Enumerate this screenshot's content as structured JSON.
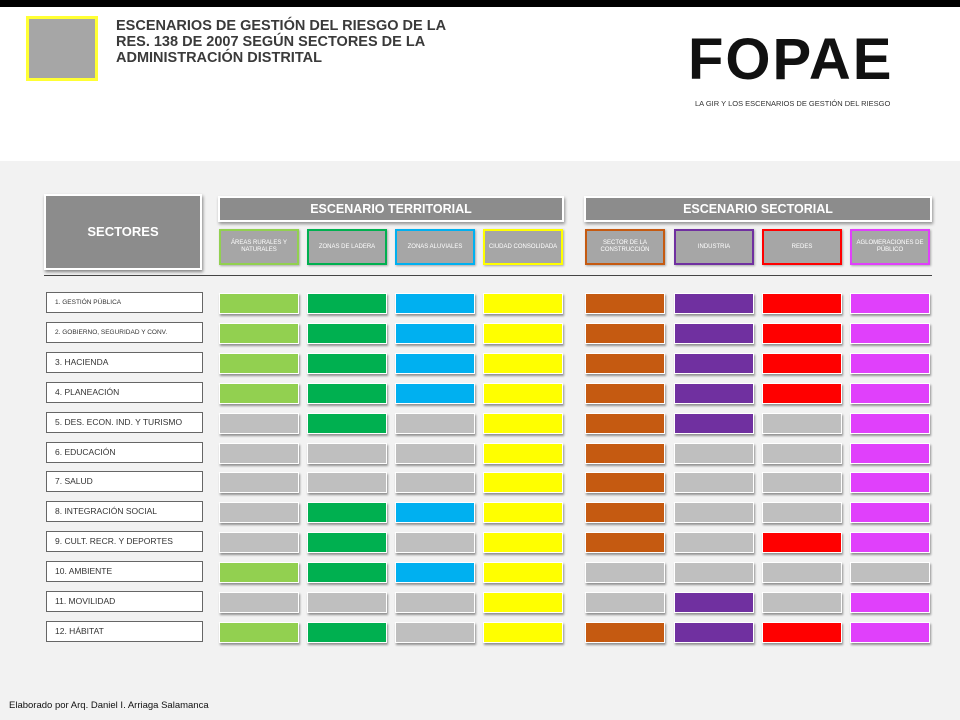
{
  "header": {
    "title": "ESCENARIOS DE GESTIÓN DEL RIESGO DE LA RES. 138 DE 2007 SEGÚN SECTORES DE LA ADMINISTRACIÓN DISTRITAL",
    "logo_text": "FOPAE",
    "subtitle": "LA GIR Y LOS ESCENARIOS DE GESTIÓN DEL RIESGO"
  },
  "sectores_label": "SECTORES",
  "territorial": {
    "label": "ESCENARIO TERRITORIAL",
    "columns": [
      {
        "label": "ÁREAS RURALES Y NATURALES",
        "color": "#92d050"
      },
      {
        "label": "ZONAS DE LADERA",
        "color": "#00b050"
      },
      {
        "label": "ZONAS ALUVIALES",
        "color": "#00b0f0"
      },
      {
        "label": "CIUDAD CONSOLIDADA",
        "color": "#ffff00"
      }
    ]
  },
  "sectorial": {
    "label": "ESCENARIO SECTORIAL",
    "columns": [
      {
        "label": "SECTOR DE LA CONSTRUCCIÓN",
        "color": "#c55a11"
      },
      {
        "label": "INDUSTRIA",
        "color": "#7030a0"
      },
      {
        "label": "REDES",
        "color": "#ff0000"
      },
      {
        "label": "AGLOMERACIONES DE PÚBLICO",
        "color": "#e040fb"
      }
    ]
  },
  "inactive_color": "#bfbfbf",
  "rows": [
    {
      "label": "1. GESTIÓN PÚBLICA",
      "active": [
        1,
        1,
        1,
        1,
        1,
        1,
        1,
        1
      ]
    },
    {
      "label": "2. GOBIERNO, SEGURIDAD Y CONV.",
      "active": [
        1,
        1,
        1,
        1,
        1,
        1,
        1,
        1
      ]
    },
    {
      "label": "3. HACIENDA",
      "active": [
        1,
        1,
        1,
        1,
        1,
        1,
        1,
        1
      ]
    },
    {
      "label": "4. PLANEACIÓN",
      "active": [
        1,
        1,
        1,
        1,
        1,
        1,
        1,
        1
      ]
    },
    {
      "label": "5. DES. ECON. IND. Y TURISMO",
      "active": [
        0,
        1,
        0,
        1,
        1,
        1,
        0,
        1
      ]
    },
    {
      "label": "6. EDUCACIÓN",
      "active": [
        0,
        0,
        0,
        1,
        1,
        0,
        0,
        1
      ]
    },
    {
      "label": "7. SALUD",
      "active": [
        0,
        0,
        0,
        1,
        1,
        0,
        0,
        1
      ]
    },
    {
      "label": "8. INTEGRACIÓN SOCIAL",
      "active": [
        0,
        1,
        1,
        1,
        1,
        0,
        0,
        1
      ]
    },
    {
      "label": "9. CULT. RECR. Y DEPORTES",
      "active": [
        0,
        1,
        0,
        1,
        1,
        0,
        1,
        1
      ]
    },
    {
      "label": "10. AMBIENTE",
      "active": [
        1,
        1,
        1,
        1,
        0,
        0,
        0,
        0
      ]
    },
    {
      "label": "11. MOVILIDAD",
      "active": [
        0,
        0,
        0,
        1,
        0,
        1,
        0,
        1
      ]
    },
    {
      "label": "12. HÁBITAT",
      "active": [
        1,
        1,
        0,
        1,
        1,
        1,
        1,
        1
      ]
    }
  ],
  "footer": "Elaborado por Arq. Daniel I. Arriaga Salamanca"
}
